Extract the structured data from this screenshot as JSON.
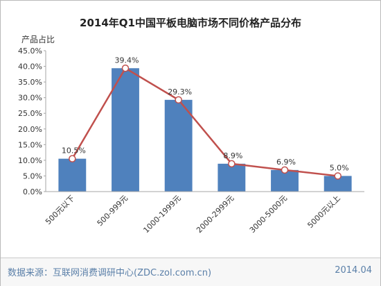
{
  "chart_data": {
    "type": "bar",
    "title": "2014年Q1中国平板电脑市场不同价格产品分布",
    "ylabel": "产品占比",
    "xlabel": "",
    "categories": [
      "500元以下",
      "500-999元",
      "1000-1999元",
      "2000-2999元",
      "3000-5000元",
      "5000元以上"
    ],
    "values": [
      10.5,
      39.4,
      29.3,
      8.9,
      6.9,
      5.0
    ],
    "data_labels": [
      "10.5%",
      "39.4%",
      "29.3%",
      "8.9%",
      "6.9%",
      "5.0%"
    ],
    "line_values": [
      10.5,
      39.4,
      29.3,
      8.9,
      6.9,
      5.0
    ],
    "ylim": [
      0,
      45
    ],
    "yticks": [
      "0.0%",
      "5.0%",
      "10.0%",
      "15.0%",
      "20.0%",
      "25.0%",
      "30.0%",
      "35.0%",
      "40.0%",
      "45.0%"
    ],
    "ytick_values": [
      0,
      5,
      10,
      15,
      20,
      25,
      30,
      35,
      40,
      45
    ],
    "grid": false,
    "legend": "none",
    "colors": {
      "bar": "#4f81bd",
      "line": "#c0504d",
      "marker_fill": "#ffffff",
      "axis": "#a6a6a6",
      "text": "#333333"
    }
  },
  "footer": {
    "source": "数据来源：互联网消费调研中心(ZDC.zol.com.cn)",
    "date": "2014.04"
  }
}
